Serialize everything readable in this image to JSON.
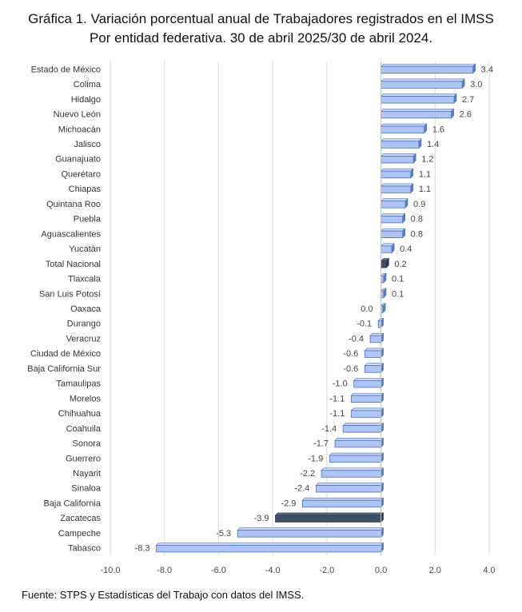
{
  "title_line1": "Gráfica 1. Variación porcentual anual de Trabajadores registrados en el IMSS",
  "title_line2": "Por entidad federativa. 30 de abril 2025/30 de abril 2024.",
  "footer": "Fuente: STPS y Estadísticas del Trabajo con datos del IMSS.",
  "chart_data": {
    "type": "bar",
    "orientation": "horizontal",
    "title": "Gráfica 1. Variación porcentual anual de Trabajadores registrados en el IMSS Por entidad federativa. 30 de abril 2025/30 de abril 2024.",
    "xlim": [
      -10.0,
      4.0
    ],
    "xticks": [
      "-10.0",
      "-8.0",
      "-6.0",
      "-4.0",
      "-2.0",
      "0.0",
      "2.0",
      "4.0"
    ],
    "xtick_values": [
      -10,
      -8,
      -6,
      -4,
      -2,
      0,
      2,
      4
    ],
    "grid": "vertical",
    "colors": {
      "bar": "#aec4f4",
      "bar_edge": "#4a6fb8",
      "highlight": "#3f4f66"
    },
    "categories": [
      "Estado de México",
      "Colima",
      "Hidalgo",
      "Nuevo León",
      "Michoacán",
      "Jalisco",
      "Guanajuato",
      "Querétaro",
      "Chiapas",
      "Quintana Roo",
      "Puebla",
      "Aguascalientes",
      "Yucatán",
      "Total Nacional",
      "Tlaxcala",
      "San Luis Potosí",
      "Oaxaca",
      "Durango",
      "Veracruz",
      "Ciudad de México",
      "Baja California Sur",
      "Tamaulipas",
      "Morelos",
      "Chihuahua",
      "Coahuila",
      "Sonora",
      "Guerrero",
      "Nayarit",
      "Sinaloa",
      "Baja California",
      "Zacatecas",
      "Campeche",
      "Tabasco"
    ],
    "values": [
      3.4,
      3.0,
      2.7,
      2.6,
      1.6,
      1.4,
      1.2,
      1.1,
      1.1,
      0.9,
      0.8,
      0.8,
      0.4,
      0.2,
      0.1,
      0.1,
      0.0,
      -0.1,
      -0.4,
      -0.6,
      -0.6,
      -1.0,
      -1.1,
      -1.1,
      -1.4,
      -1.7,
      -1.9,
      -2.2,
      -2.4,
      -2.9,
      -3.9,
      -5.3,
      -8.3
    ],
    "labels": [
      "3.4",
      "3.0",
      "2.7",
      "2.6",
      "1.6",
      "1.4",
      "1.2",
      "1.1",
      "1.1",
      "0.9",
      "0.8",
      "0.8",
      "0.4",
      "0.2",
      "0.1",
      "0.1",
      "0.0",
      "-0.1",
      "-0.4",
      "-0.6",
      "-0.6",
      "-1.0",
      "-1.1",
      "-1.1",
      "-1.4",
      "-1.7",
      "-1.9",
      "-2.2",
      "-2.4",
      "-2.9",
      "-3.9",
      "-5.3",
      "-8.3"
    ],
    "highlighted": [
      "Total Nacional",
      "Zacatecas"
    ]
  }
}
